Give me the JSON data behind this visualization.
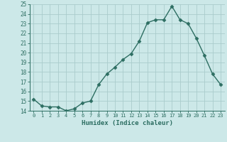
{
  "x": [
    0,
    1,
    2,
    3,
    4,
    5,
    6,
    7,
    8,
    9,
    10,
    11,
    12,
    13,
    14,
    15,
    16,
    17,
    18,
    19,
    20,
    21,
    22,
    23
  ],
  "y": [
    15.2,
    14.5,
    14.4,
    14.4,
    14.0,
    14.2,
    14.8,
    15.0,
    16.7,
    17.8,
    18.5,
    19.3,
    19.9,
    21.2,
    23.1,
    23.4,
    23.4,
    24.8,
    23.4,
    23.0,
    21.5,
    19.7,
    17.8,
    16.7
  ],
  "xlabel": "Humidex (Indice chaleur)",
  "bg_color": "#cce8e8",
  "grid_color": "#aacccc",
  "line_color": "#2d6e62",
  "ylim": [
    14,
    25
  ],
  "xlim": [
    -0.5,
    23.5
  ],
  "yticks": [
    14,
    15,
    16,
    17,
    18,
    19,
    20,
    21,
    22,
    23,
    24,
    25
  ],
  "xticks": [
    0,
    1,
    2,
    3,
    4,
    5,
    6,
    7,
    8,
    9,
    10,
    11,
    12,
    13,
    14,
    15,
    16,
    17,
    18,
    19,
    20,
    21,
    22,
    23
  ]
}
